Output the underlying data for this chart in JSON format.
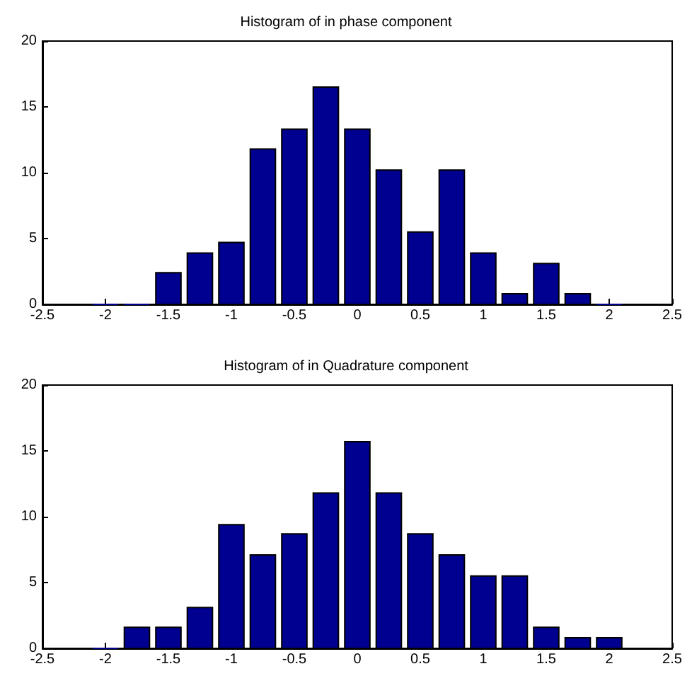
{
  "chart_data": [
    {
      "type": "histogram",
      "title": "Histogram of in phase component",
      "bins": [
        -2.125,
        -1.875,
        -1.625,
        -1.375,
        -1.125,
        -0.875,
        -0.625,
        -0.375,
        -0.125,
        0.125,
        0.375,
        0.625,
        0.875,
        1.125,
        1.375,
        1.625,
        1.875,
        2.125
      ],
      "values": [
        0,
        0,
        2.4,
        3.9,
        4.7,
        11.8,
        13.3,
        16.5,
        13.3,
        10.2,
        5.5,
        10.2,
        3.9,
        0.8,
        3.1,
        0.8,
        0
      ],
      "color": "#000090",
      "xlim": [
        -2.5,
        2.5
      ],
      "xticks": [
        -2.5,
        -2,
        -1.5,
        -1,
        -0.5,
        0,
        0.5,
        1,
        1.5,
        2,
        2.5
      ],
      "ylim": [
        0,
        20
      ],
      "yticks": [
        0,
        5,
        10,
        15,
        20
      ],
      "grid": false
    },
    {
      "type": "histogram",
      "title": "Histogram of in Quadrature component",
      "bins": [
        -2.125,
        -1.875,
        -1.625,
        -1.375,
        -1.125,
        -0.875,
        -0.625,
        -0.375,
        -0.125,
        0.125,
        0.375,
        0.625,
        0.875,
        1.125,
        1.375,
        1.625,
        1.875,
        2.125
      ],
      "values": [
        0,
        1.6,
        1.6,
        3.1,
        9.4,
        7.1,
        8.7,
        11.8,
        15.7,
        11.8,
        8.7,
        7.1,
        5.5,
        5.5,
        1.6,
        0.8,
        0.8
      ],
      "color": "#000090",
      "xlim": [
        -2.5,
        2.5
      ],
      "xticks": [
        -2.5,
        -2,
        -1.5,
        -1,
        -0.5,
        0,
        0.5,
        1,
        1.5,
        2,
        2.5
      ],
      "ylim": [
        0,
        20
      ],
      "yticks": [
        0,
        5,
        10,
        15,
        20
      ],
      "grid": false
    }
  ]
}
